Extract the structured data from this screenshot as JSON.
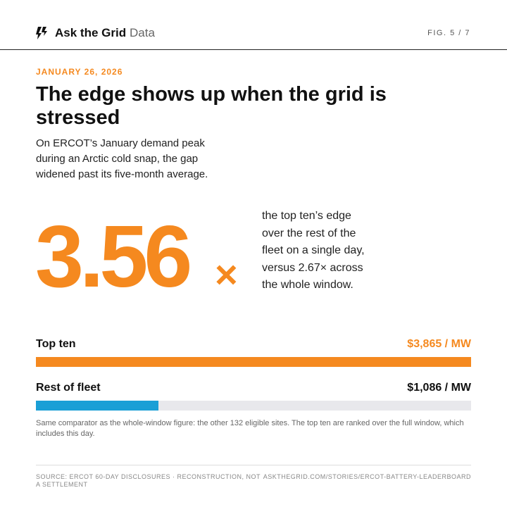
{
  "header": {
    "brand": "Ask the Grid",
    "section": "Data",
    "fig": "FIG. 5 / 7"
  },
  "date": "JANUARY 26, 2026",
  "title": "The edge shows up when the grid is stressed",
  "subtitle": "On ERCOT’s January demand peak during an Arctic cold snap, the gap widened past its five-month average.",
  "stat": {
    "number": "3.56",
    "unit": "×",
    "text": "the top ten’s edge over the rest of the fleet on a single day, versus 2.67× across the whole window."
  },
  "bars": [
    {
      "name": "Top ten",
      "value": 3865,
      "value_label": "$3,865 / MW",
      "color": "#f5891f"
    },
    {
      "name": "Rest of fleet",
      "value": 1086,
      "value_label": "$1,086 / MW",
      "color": "#1a9fd6"
    }
  ],
  "note": "Same comparator as the whole-window figure: the other 132 eligible sites. The top ten are ranked over the full window, which includes this day.",
  "footer": {
    "source": "SOURCE: ERCOT 60-DAY DISCLOSURES · RECONSTRUCTION, NOT A SETTLEMENT",
    "url": "ASKTHEGRID.COM/STORIES/ERCOT-BATTERY-LEADERBOARD"
  }
}
